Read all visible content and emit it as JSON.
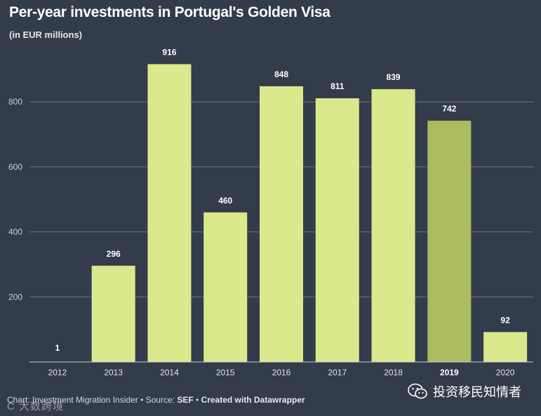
{
  "header": {
    "title": "Per-year investments in Portugal's Golden Visa",
    "subtitle": "(in EUR millions)"
  },
  "footer": {
    "chart_prefix": "Chart: Investment Migration Insider • Source: ",
    "source": "SEF",
    "separator": " • ",
    "created": "Created with Datawrapper"
  },
  "watermarks": {
    "left": "C  大数跨境",
    "right": "投资移民知情者",
    "right_icon": "wechat-icon"
  },
  "colors": {
    "background": "#333c4b",
    "bar": "#dce88c",
    "bar_highlight": "#acbb60",
    "grid": "#6e7684",
    "axis": "#c8ccd2"
  },
  "chart_data": {
    "type": "bar",
    "title": "Per-year investments in Portugal's Golden Visa",
    "subtitle": "(in EUR millions)",
    "xlabel": "",
    "ylabel": "",
    "categories": [
      "2012",
      "2013",
      "2014",
      "2015",
      "2016",
      "2017",
      "2018",
      "2019",
      "2020"
    ],
    "values": [
      1,
      296,
      916,
      460,
      848,
      811,
      839,
      742,
      92
    ],
    "value_labels": [
      "1",
      "296",
      "916",
      "460",
      "848",
      "811",
      "839",
      "742",
      "92"
    ],
    "highlight": "2019",
    "ylim": [
      0,
      1000
    ],
    "yticks": [
      200,
      400,
      600,
      800
    ],
    "ytick_labels": [
      "200",
      "400",
      "600",
      "800"
    ],
    "grid": true
  }
}
